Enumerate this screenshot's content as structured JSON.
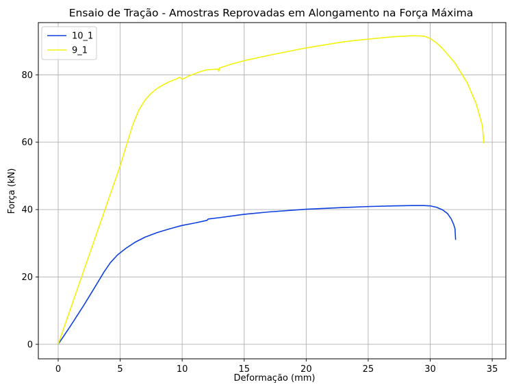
{
  "chart_data": {
    "type": "line",
    "title": "Ensaio de Tração - Amostras Reprovadas em Alongamento na Força Máxima",
    "xlabel": "Deformação (mm)",
    "ylabel": "Força (kN)",
    "xlim": [
      -1.6,
      36.1
    ],
    "ylim": [
      -4.3,
      95.5
    ],
    "xticks": [
      0,
      5,
      10,
      15,
      20,
      25,
      30,
      35
    ],
    "yticks": [
      0,
      20,
      40,
      60,
      80
    ],
    "grid": true,
    "legend_position": "top-left",
    "series": [
      {
        "name": "10_1",
        "color": "#0d3fe0",
        "points": [
          [
            0,
            0
          ],
          [
            1,
            5.5
          ],
          [
            2,
            11.2
          ],
          [
            3,
            17.2
          ],
          [
            3.7,
            21.5
          ],
          [
            4.2,
            24.2
          ],
          [
            4.8,
            26.6
          ],
          [
            5.5,
            28.6
          ],
          [
            6.2,
            30.3
          ],
          [
            7,
            31.8
          ],
          [
            8,
            33.2
          ],
          [
            9,
            34.3
          ],
          [
            10,
            35.3
          ],
          [
            11,
            36
          ],
          [
            12,
            36.8
          ],
          [
            12.1,
            37.2
          ],
          [
            13,
            37.6
          ],
          [
            14,
            38.1
          ],
          [
            15,
            38.6
          ],
          [
            17,
            39.3
          ],
          [
            20,
            40.1
          ],
          [
            23,
            40.6
          ],
          [
            25,
            40.9
          ],
          [
            27,
            41.1
          ],
          [
            28.5,
            41.2
          ],
          [
            29.5,
            41.2
          ],
          [
            30,
            41.1
          ],
          [
            30.5,
            40.7
          ],
          [
            31,
            39.9
          ],
          [
            31.4,
            38.8
          ],
          [
            31.7,
            37.2
          ],
          [
            31.9,
            35.5
          ],
          [
            32,
            34.3
          ],
          [
            32.05,
            31
          ]
        ]
      },
      {
        "name": "9_1",
        "color": "#f2f20a",
        "points": [
          [
            0,
            0
          ],
          [
            1,
            10.6
          ],
          [
            2,
            21.2
          ],
          [
            3,
            31.8
          ],
          [
            4,
            42.4
          ],
          [
            5,
            53
          ],
          [
            5.5,
            59
          ],
          [
            6,
            65
          ],
          [
            6.5,
            69.5
          ],
          [
            7,
            72.5
          ],
          [
            7.5,
            74.5
          ],
          [
            8,
            76
          ],
          [
            8.5,
            77.1
          ],
          [
            9,
            78
          ],
          [
            9.5,
            78.7
          ],
          [
            9.8,
            79.3
          ],
          [
            10,
            78.7
          ],
          [
            10.2,
            79
          ],
          [
            10.5,
            79.6
          ],
          [
            11,
            80.3
          ],
          [
            11.5,
            81
          ],
          [
            12,
            81.5
          ],
          [
            12.5,
            81.6
          ],
          [
            12.9,
            81.7
          ],
          [
            12.95,
            81.0
          ],
          [
            13,
            82
          ],
          [
            14,
            83.2
          ],
          [
            15,
            84.2
          ],
          [
            17,
            85.8
          ],
          [
            20,
            88
          ],
          [
            23,
            89.8
          ],
          [
            25,
            90.6
          ],
          [
            27,
            91.3
          ],
          [
            28.5,
            91.6
          ],
          [
            29.5,
            91.5
          ],
          [
            30,
            90.8
          ],
          [
            30.5,
            89.5
          ],
          [
            31,
            87.8
          ],
          [
            32,
            83.5
          ],
          [
            33,
            77.5
          ],
          [
            33.7,
            71.5
          ],
          [
            34.2,
            65
          ],
          [
            34.3,
            61
          ],
          [
            34.32,
            59.7
          ]
        ]
      }
    ]
  }
}
